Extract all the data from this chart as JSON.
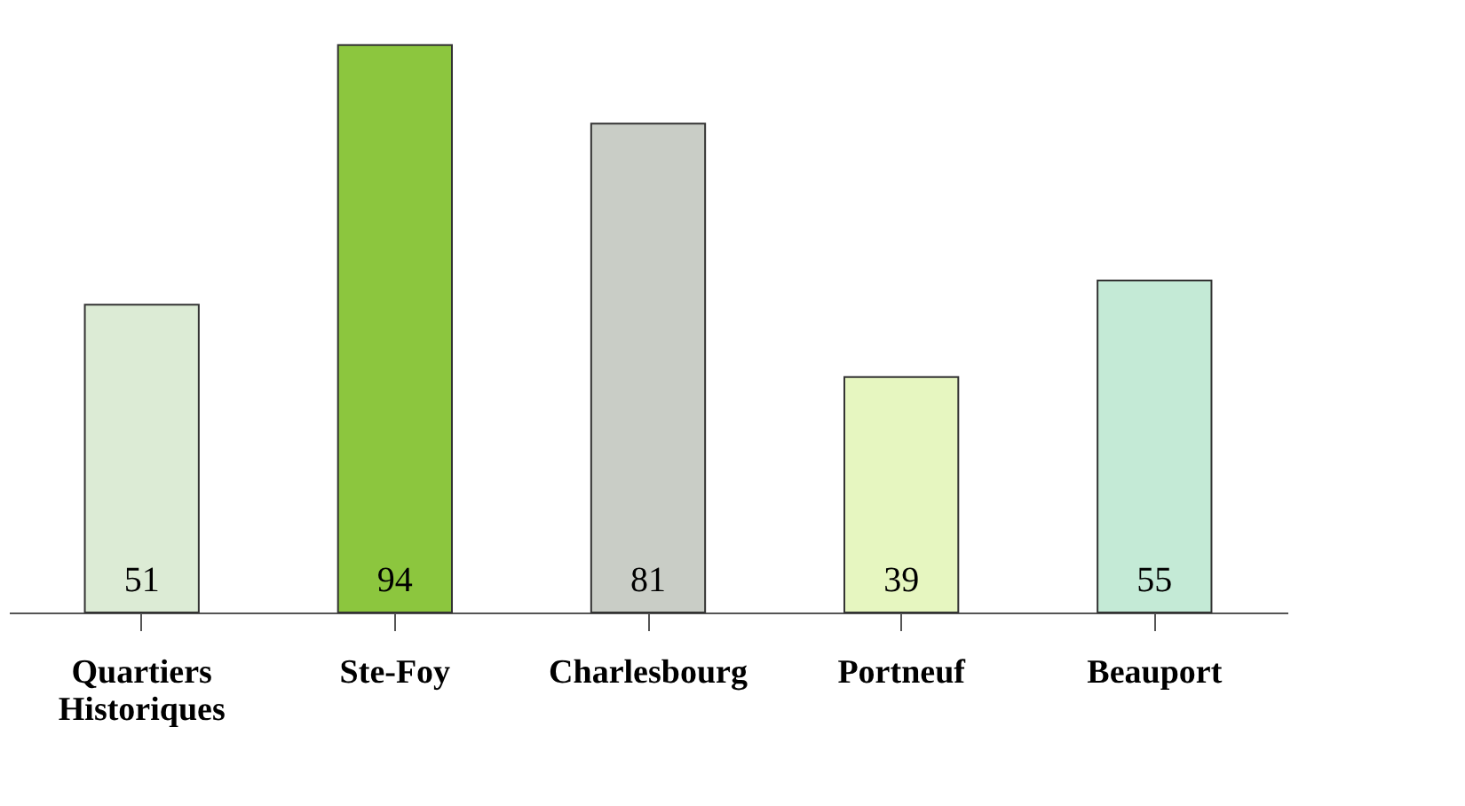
{
  "chart_data": {
    "type": "bar",
    "categories": [
      "Quartiers Historiques",
      "Ste-Foy",
      "Charlesbourg",
      "Portneuf",
      "Beauport"
    ],
    "values": [
      51,
      94,
      81,
      39,
      55
    ],
    "colors": [
      "#dcebd5",
      "#8cc63e",
      "#c9cdc6",
      "#e6f6c0",
      "#c4ead6"
    ],
    "data_labels": true,
    "tick_labels": "x"
  }
}
